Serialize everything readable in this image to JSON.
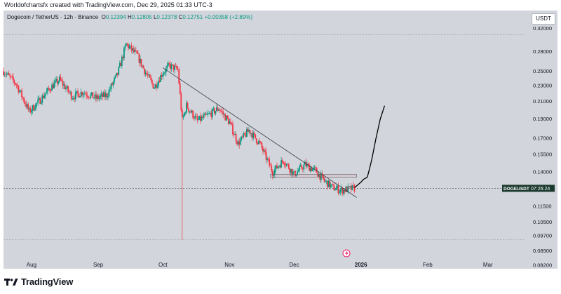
{
  "header": {
    "credit": "Worldofchartsfx created with TradingView.com, Dec 29, 2025 01:33 UTC-3"
  },
  "legend": {
    "symbol": "Dogecoin / TetherUS · 12h · Binance",
    "o_label": "O",
    "o_value": "0.12394",
    "h_label": "H",
    "h_value": "0.12805",
    "l_label": "L",
    "l_value": "0.12378",
    "c_label": "C",
    "c_value": "0.12751",
    "change": "+0.00358 (+2.89%)"
  },
  "toolbar": {
    "currency_button": "USDT"
  },
  "price_tag": {
    "symbol": "DOGEUSDT",
    "countdown": "07:26:24"
  },
  "brand": {
    "name": "TradingView",
    "logo_icon": "tradingview-logo-icon"
  },
  "colors": {
    "up": "#089981",
    "down": "#f23645",
    "background": "#d3d5dc",
    "price_tag_bg": "#1b3a2e",
    "projection": "#000000",
    "trendline": "#3a3d47"
  },
  "chart_data": {
    "type": "candlestick",
    "instrument": "DOGEUSDT",
    "interval": "12h",
    "exchange": "Binance",
    "scale": "log",
    "y_ticks": [
      0.32,
      0.28,
      0.25,
      0.23,
      0.21,
      0.19,
      0.17,
      0.155,
      0.14,
      0.115,
      0.105,
      0.097,
      0.089,
      0.082
    ],
    "y_tick_labels": [
      "0.32000",
      "0.28000",
      "0.25000",
      "0.23000",
      "0.21000",
      "0.19000",
      "0.17000",
      "0.15500",
      "0.14000",
      "0.11500",
      "0.10500",
      "0.09700",
      "0.08900",
      "0.08200"
    ],
    "x_ticks": [
      {
        "label": "Aug",
        "date": "2025-08-01",
        "bold": false
      },
      {
        "label": "Sep",
        "date": "2025-09-01",
        "bold": false
      },
      {
        "label": "Oct",
        "date": "2025-10-01",
        "bold": false
      },
      {
        "label": "Nov",
        "date": "2025-11-01",
        "bold": false
      },
      {
        "label": "Dec",
        "date": "2025-12-01",
        "bold": false
      },
      {
        "label": "2026",
        "date": "2026-01-01",
        "bold": true
      },
      {
        "label": "Feb",
        "date": "2026-02-01",
        "bold": false
      },
      {
        "label": "Mar",
        "date": "2026-03-01",
        "bold": false
      }
    ],
    "last_price": 0.12751,
    "dashed_levels": [
      0.3084,
      0.09493
    ],
    "price_path": [
      [
        "2025-07-19",
        0.25
      ],
      [
        "2025-07-25",
        0.232
      ],
      [
        "2025-07-31",
        0.198
      ],
      [
        "2025-08-05",
        0.212
      ],
      [
        "2025-08-10",
        0.228
      ],
      [
        "2025-08-14",
        0.238
      ],
      [
        "2025-08-20",
        0.216
      ],
      [
        "2025-08-25",
        0.222
      ],
      [
        "2025-08-31",
        0.214
      ],
      [
        "2025-09-05",
        0.218
      ],
      [
        "2025-09-10",
        0.246
      ],
      [
        "2025-09-14",
        0.292
      ],
      [
        "2025-09-19",
        0.274
      ],
      [
        "2025-09-23",
        0.248
      ],
      [
        "2025-09-27",
        0.228
      ],
      [
        "2025-10-01",
        0.248
      ],
      [
        "2025-10-04",
        0.258
      ],
      [
        "2025-10-08",
        0.252
      ],
      [
        "2025-10-10",
        0.188
      ],
      [
        "2025-10-12",
        0.205
      ],
      [
        "2025-10-17",
        0.188
      ],
      [
        "2025-10-22",
        0.194
      ],
      [
        "2025-10-27",
        0.202
      ],
      [
        "2025-11-01",
        0.186
      ],
      [
        "2025-11-05",
        0.165
      ],
      [
        "2025-11-10",
        0.178
      ],
      [
        "2025-11-15",
        0.165
      ],
      [
        "2025-11-21",
        0.14
      ],
      [
        "2025-11-26",
        0.15
      ],
      [
        "2025-12-01",
        0.138
      ],
      [
        "2025-12-06",
        0.146
      ],
      [
        "2025-12-11",
        0.141
      ],
      [
        "2025-12-15",
        0.133
      ],
      [
        "2025-12-19",
        0.128
      ],
      [
        "2025-12-23",
        0.126
      ],
      [
        "2025-12-29",
        0.1275
      ]
    ],
    "drawings": {
      "trendline": {
        "from": [
          "2025-10-01",
          0.255
        ],
        "to": [
          "2025-12-30",
          0.121
        ]
      },
      "horizontal_range": {
        "from_date": "2025-11-20",
        "to_date": "2025-12-30",
        "top": 0.1382,
        "bottom": 0.1358
      },
      "flash_crash_wick": {
        "date": "2025-10-10",
        "low": 0.0949
      },
      "projection": [
        [
          "2025-12-29",
          0.128
        ],
        [
          "2026-01-01",
          0.132
        ],
        [
          "2026-01-02",
          0.134
        ],
        [
          "2026-01-04",
          0.136
        ],
        [
          "2026-01-06",
          0.15
        ],
        [
          "2026-01-08",
          0.17
        ],
        [
          "2026-01-10",
          0.19
        ],
        [
          "2026-01-12",
          0.205
        ]
      ]
    }
  }
}
